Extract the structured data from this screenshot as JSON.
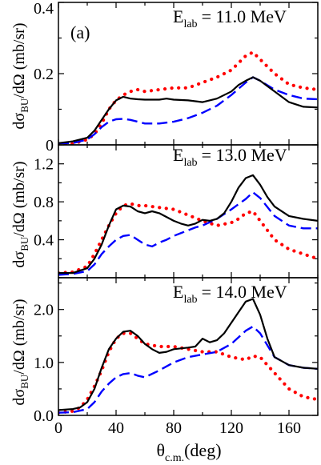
{
  "figure": {
    "panel_label": "(a)",
    "xlabel_main": "θ",
    "xlabel_sub": "c.m.",
    "xlabel_unit": "(deg)",
    "ylabel_pre": "dσ",
    "ylabel_sub": "BU",
    "ylabel_post": "/dΩ (mb/sr)",
    "energy_pre": "E",
    "energy_sub": "lab",
    "line_colors": [
      "#000000",
      "#0000ff",
      "#ff0000"
    ],
    "line_styles": [
      "solid",
      "dashed",
      "dotted"
    ]
  },
  "chart_data": [
    {
      "type": "line",
      "title": "E lab = 11.0 MeV",
      "energy_value": "= 11.0 MeV",
      "xlim": [
        0,
        180
      ],
      "ylim": [
        0,
        0.4
      ],
      "yticks": [
        0,
        0.2,
        0.4
      ],
      "ytick_labels": [
        "0",
        "0.2",
        "0.4"
      ],
      "grid": false,
      "series": [
        {
          "x": [
            0,
            10,
            20,
            25,
            30,
            35,
            40,
            45,
            50,
            55,
            60,
            70,
            75,
            80,
            90,
            100,
            110,
            120,
            125,
            130,
            135,
            140,
            145,
            150,
            160,
            170,
            180
          ],
          "y": [
            0.005,
            0.01,
            0.02,
            0.04,
            0.07,
            0.1,
            0.125,
            0.135,
            0.13,
            0.128,
            0.127,
            0.127,
            0.13,
            0.127,
            0.125,
            0.12,
            0.13,
            0.15,
            0.168,
            0.18,
            0.19,
            0.18,
            0.165,
            0.15,
            0.12,
            0.107,
            0.105
          ]
        },
        {
          "x": [
            0,
            10,
            20,
            25,
            30,
            35,
            40,
            45,
            50,
            55,
            60,
            70,
            80,
            90,
            100,
            110,
            120,
            130,
            135,
            140,
            150,
            160,
            170,
            180
          ],
          "y": [
            0.005,
            0.005,
            0.015,
            0.03,
            0.05,
            0.065,
            0.072,
            0.073,
            0.07,
            0.065,
            0.06,
            0.06,
            0.065,
            0.075,
            0.09,
            0.11,
            0.14,
            0.175,
            0.19,
            0.18,
            0.155,
            0.14,
            0.13,
            0.128
          ]
        },
        {
          "x": [
            0,
            10,
            20,
            25,
            30,
            35,
            40,
            45,
            50,
            55,
            60,
            70,
            80,
            90,
            100,
            110,
            120,
            130,
            135,
            140,
            150,
            160,
            170,
            180
          ],
          "y": [
            0,
            0.003,
            0.015,
            0.03,
            0.06,
            0.1,
            0.125,
            0.14,
            0.15,
            0.155,
            0.15,
            0.155,
            0.16,
            0.16,
            0.175,
            0.19,
            0.21,
            0.25,
            0.26,
            0.24,
            0.2,
            0.17,
            0.16,
            0.155
          ]
        }
      ]
    },
    {
      "type": "line",
      "title": "E lab = 13.0 MeV",
      "energy_value": "= 13.0 MeV",
      "xlim": [
        0,
        180
      ],
      "ylim": [
        0,
        1.4
      ],
      "yticks": [
        0.4,
        0.8,
        1.2
      ],
      "ytick_labels": [
        "0.4",
        "0.8",
        "1.2"
      ],
      "grid": false,
      "series": [
        {
          "x": [
            0,
            10,
            20,
            25,
            30,
            35,
            40,
            45,
            50,
            55,
            60,
            65,
            70,
            75,
            80,
            85,
            90,
            95,
            100,
            105,
            110,
            115,
            120,
            125,
            130,
            135,
            140,
            145,
            150,
            160,
            170,
            180
          ],
          "y": [
            0.05,
            0.05,
            0.1,
            0.2,
            0.35,
            0.55,
            0.72,
            0.76,
            0.75,
            0.7,
            0.68,
            0.7,
            0.68,
            0.64,
            0.6,
            0.57,
            0.55,
            0.57,
            0.61,
            0.6,
            0.62,
            0.68,
            0.8,
            0.95,
            1.05,
            1.08,
            0.98,
            0.85,
            0.75,
            0.65,
            0.62,
            0.6
          ]
        },
        {
          "x": [
            0,
            10,
            20,
            25,
            30,
            35,
            40,
            45,
            50,
            55,
            60,
            65,
            70,
            75,
            80,
            85,
            90,
            95,
            100,
            110,
            120,
            130,
            135,
            140,
            150,
            160,
            170,
            180
          ],
          "y": [
            0.03,
            0.04,
            0.07,
            0.14,
            0.25,
            0.33,
            0.4,
            0.44,
            0.45,
            0.4,
            0.35,
            0.33,
            0.37,
            0.4,
            0.44,
            0.47,
            0.5,
            0.53,
            0.55,
            0.62,
            0.72,
            0.83,
            0.9,
            0.84,
            0.65,
            0.55,
            0.52,
            0.52
          ]
        },
        {
          "x": [
            0,
            10,
            20,
            25,
            30,
            35,
            40,
            45,
            50,
            55,
            60,
            70,
            80,
            90,
            100,
            110,
            120,
            125,
            130,
            135,
            140,
            145,
            150,
            160,
            170,
            180
          ],
          "y": [
            0.05,
            0.06,
            0.12,
            0.25,
            0.4,
            0.55,
            0.68,
            0.76,
            0.78,
            0.76,
            0.76,
            0.74,
            0.72,
            0.66,
            0.6,
            0.55,
            0.58,
            0.62,
            0.68,
            0.7,
            0.6,
            0.5,
            0.4,
            0.3,
            0.25,
            0.2
          ]
        }
      ]
    },
    {
      "type": "line",
      "title": "E lab = 14.0 MeV",
      "energy_value": "= 14.0 MeV",
      "xlim": [
        0,
        180
      ],
      "ylim": [
        0,
        2.6
      ],
      "yticks": [
        0,
        1.0,
        2.0
      ],
      "ytick_labels": [
        "0.0",
        "1.0",
        "2.0"
      ],
      "xticks": [
        0,
        40,
        80,
        120,
        160
      ],
      "xtick_labels": [
        "0",
        "40",
        "80",
        "120",
        "160"
      ],
      "grid": false,
      "series": [
        {
          "x": [
            0,
            10,
            15,
            20,
            25,
            30,
            35,
            40,
            45,
            50,
            55,
            60,
            65,
            70,
            75,
            80,
            90,
            95,
            100,
            105,
            110,
            115,
            120,
            125,
            130,
            135,
            140,
            145,
            150,
            160,
            170,
            180
          ],
          "y": [
            0.1,
            0.12,
            0.15,
            0.25,
            0.5,
            0.9,
            1.25,
            1.45,
            1.58,
            1.6,
            1.5,
            1.35,
            1.25,
            1.18,
            1.2,
            1.25,
            1.28,
            1.3,
            1.45,
            1.38,
            1.42,
            1.55,
            1.75,
            1.95,
            2.15,
            2.2,
            1.9,
            1.45,
            1.1,
            0.95,
            0.9,
            0.88
          ]
        },
        {
          "x": [
            0,
            10,
            20,
            25,
            30,
            35,
            40,
            45,
            50,
            55,
            60,
            70,
            80,
            90,
            100,
            110,
            120,
            130,
            135,
            140,
            150,
            160,
            170,
            180
          ],
          "y": [
            0.05,
            0.06,
            0.12,
            0.25,
            0.45,
            0.6,
            0.72,
            0.78,
            0.8,
            0.75,
            0.72,
            0.85,
            1.0,
            1.1,
            1.15,
            1.2,
            1.35,
            1.6,
            1.68,
            1.55,
            1.1,
            0.95,
            0.9,
            0.88
          ]
        },
        {
          "x": [
            0,
            10,
            15,
            20,
            25,
            30,
            35,
            40,
            45,
            50,
            55,
            60,
            70,
            80,
            90,
            100,
            110,
            120,
            130,
            135,
            140,
            150,
            160,
            170,
            180
          ],
          "y": [
            0.05,
            0.08,
            0.15,
            0.3,
            0.55,
            0.85,
            1.2,
            1.45,
            1.55,
            1.55,
            1.45,
            1.35,
            1.3,
            1.3,
            1.25,
            1.2,
            1.2,
            1.1,
            1.05,
            1.12,
            1.1,
            0.8,
            0.5,
            0.35,
            0.3
          ]
        }
      ]
    }
  ]
}
